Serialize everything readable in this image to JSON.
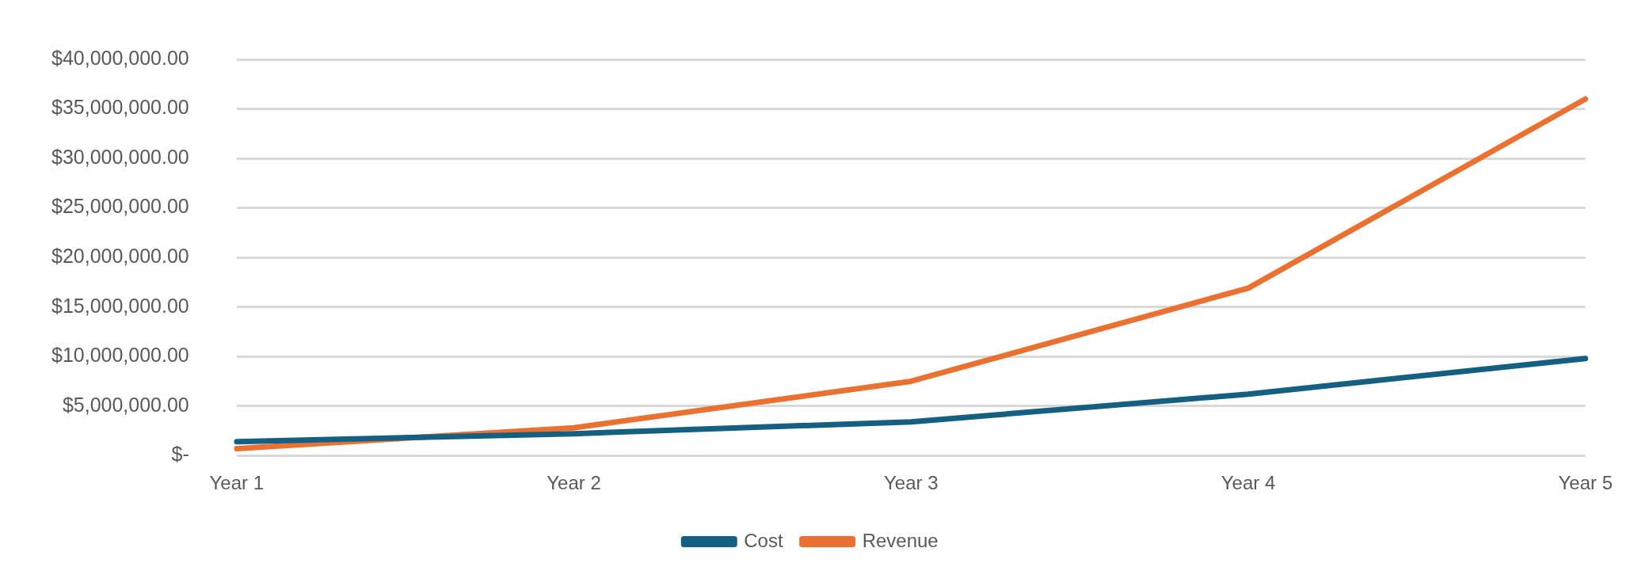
{
  "chart_data": {
    "type": "line",
    "categories": [
      "Year 1",
      "Year 2",
      "Year 3",
      "Year 4",
      "Year 5"
    ],
    "series": [
      {
        "name": "Cost",
        "color": "#156082",
        "values": [
          1400000,
          2200000,
          3400000,
          6200000,
          9800000
        ]
      },
      {
        "name": "Revenue",
        "color": "#e97132",
        "values": [
          700000,
          2800000,
          7500000,
          16900000,
          36000000
        ]
      }
    ],
    "ylim": [
      0,
      40000000
    ],
    "yticks": [
      {
        "value": 0,
        "label": "$-"
      },
      {
        "value": 5000000,
        "label": "$5,000,000.00"
      },
      {
        "value": 10000000,
        "label": "$10,000,000.00"
      },
      {
        "value": 15000000,
        "label": "$15,000,000.00"
      },
      {
        "value": 20000000,
        "label": "$20,000,000.00"
      },
      {
        "value": 25000000,
        "label": "$25,000,000.00"
      },
      {
        "value": 30000000,
        "label": "$30,000,000.00"
      },
      {
        "value": 35000000,
        "label": "$35,000,000.00"
      },
      {
        "value": 40000000,
        "label": "$40,000,000.00"
      }
    ],
    "grid": "y",
    "legend": "bottom",
    "marker": "none",
    "line_style": "solid"
  }
}
